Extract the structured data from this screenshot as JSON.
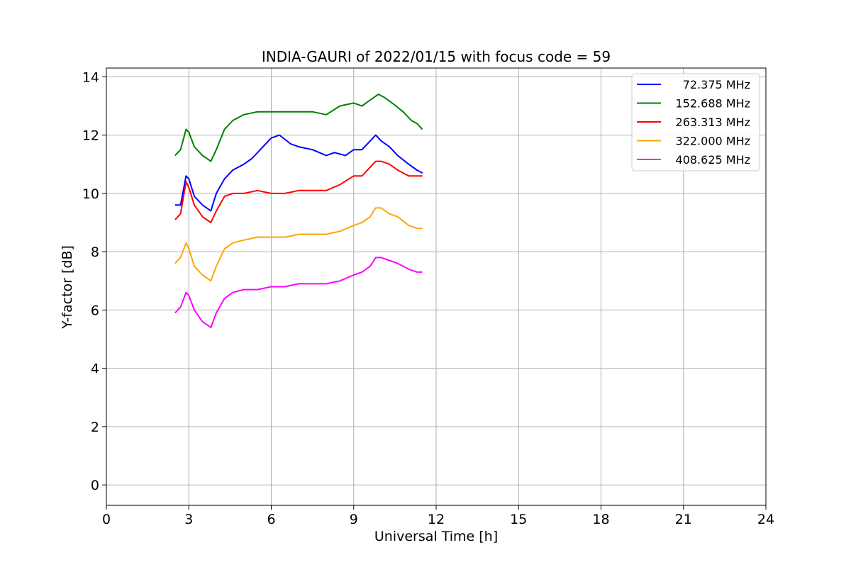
{
  "chart_data": {
    "type": "line",
    "title": "INDIA-GAURI of 2022/01/15 with focus code = 59",
    "xlabel": "Universal Time [h]",
    "ylabel": "Y-factor [dB]",
    "xlim": [
      0,
      24
    ],
    "ylim": [
      -0.7,
      14.3
    ],
    "xticks": [
      0,
      3,
      6,
      9,
      12,
      15,
      18,
      21,
      24
    ],
    "yticks": [
      0,
      2,
      4,
      6,
      8,
      10,
      12,
      14
    ],
    "grid": true,
    "legend_position": "top-right",
    "series": [
      {
        "name": "72.375 MHz",
        "color": "#0000ff",
        "x": [
          2.5,
          2.7,
          2.9,
          3.0,
          3.2,
          3.5,
          3.8,
          4.0,
          4.3,
          4.6,
          5.0,
          5.3,
          5.6,
          6.0,
          6.3,
          6.7,
          7.0,
          7.5,
          8.0,
          8.3,
          8.7,
          9.0,
          9.3,
          9.6,
          9.8,
          10.0,
          10.3,
          10.6,
          11.0,
          11.3,
          11.5
        ],
        "y": [
          9.6,
          9.6,
          10.6,
          10.5,
          9.9,
          9.6,
          9.4,
          10.0,
          10.5,
          10.8,
          11.0,
          11.2,
          11.5,
          11.9,
          12.0,
          11.7,
          11.6,
          11.5,
          11.3,
          11.4,
          11.3,
          11.5,
          11.5,
          11.8,
          12.0,
          11.8,
          11.6,
          11.3,
          11.0,
          10.8,
          10.7
        ]
      },
      {
        "name": "152.688 MHz",
        "color": "#008000",
        "x": [
          2.5,
          2.7,
          2.9,
          3.0,
          3.2,
          3.5,
          3.8,
          4.0,
          4.3,
          4.6,
          5.0,
          5.5,
          6.0,
          6.5,
          7.0,
          7.5,
          8.0,
          8.5,
          9.0,
          9.3,
          9.6,
          9.9,
          10.1,
          10.4,
          10.8,
          11.1,
          11.3,
          11.5
        ],
        "y": [
          11.3,
          11.5,
          12.2,
          12.1,
          11.6,
          11.3,
          11.1,
          11.5,
          12.2,
          12.5,
          12.7,
          12.8,
          12.8,
          12.8,
          12.8,
          12.8,
          12.7,
          13.0,
          13.1,
          13.0,
          13.2,
          13.4,
          13.3,
          13.1,
          12.8,
          12.5,
          12.4,
          12.2
        ]
      },
      {
        "name": "263.313 MHz",
        "color": "#ff0000",
        "x": [
          2.5,
          2.7,
          2.9,
          3.0,
          3.2,
          3.5,
          3.8,
          4.0,
          4.3,
          4.6,
          5.0,
          5.5,
          6.0,
          6.5,
          7.0,
          7.5,
          8.0,
          8.5,
          9.0,
          9.3,
          9.6,
          9.8,
          10.0,
          10.3,
          10.6,
          11.0,
          11.3,
          11.5
        ],
        "y": [
          9.1,
          9.3,
          10.4,
          10.2,
          9.6,
          9.2,
          9.0,
          9.4,
          9.9,
          10.0,
          10.0,
          10.1,
          10.0,
          10.0,
          10.1,
          10.1,
          10.1,
          10.3,
          10.6,
          10.6,
          10.9,
          11.1,
          11.1,
          11.0,
          10.8,
          10.6,
          10.6,
          10.6
        ]
      },
      {
        "name": "322.000 MHz",
        "color": "#ffa500",
        "x": [
          2.5,
          2.7,
          2.9,
          3.0,
          3.2,
          3.5,
          3.8,
          4.0,
          4.3,
          4.6,
          5.0,
          5.5,
          6.0,
          6.5,
          7.0,
          7.5,
          8.0,
          8.5,
          9.0,
          9.3,
          9.6,
          9.8,
          10.0,
          10.3,
          10.6,
          11.0,
          11.3,
          11.5
        ],
        "y": [
          7.6,
          7.8,
          8.3,
          8.1,
          7.5,
          7.2,
          7.0,
          7.5,
          8.1,
          8.3,
          8.4,
          8.5,
          8.5,
          8.5,
          8.6,
          8.6,
          8.6,
          8.7,
          8.9,
          9.0,
          9.2,
          9.5,
          9.5,
          9.3,
          9.2,
          8.9,
          8.8,
          8.8
        ]
      },
      {
        "name": "408.625 MHz",
        "color": "#ff00ff",
        "x": [
          2.5,
          2.7,
          2.9,
          3.0,
          3.2,
          3.5,
          3.8,
          4.0,
          4.3,
          4.6,
          5.0,
          5.5,
          6.0,
          6.5,
          7.0,
          7.5,
          8.0,
          8.5,
          9.0,
          9.3,
          9.6,
          9.8,
          10.0,
          10.3,
          10.6,
          11.0,
          11.3,
          11.5
        ],
        "y": [
          5.9,
          6.1,
          6.6,
          6.5,
          6.0,
          5.6,
          5.4,
          5.9,
          6.4,
          6.6,
          6.7,
          6.7,
          6.8,
          6.8,
          6.9,
          6.9,
          6.9,
          7.0,
          7.2,
          7.3,
          7.5,
          7.8,
          7.8,
          7.7,
          7.6,
          7.4,
          7.3,
          7.3
        ]
      }
    ]
  }
}
